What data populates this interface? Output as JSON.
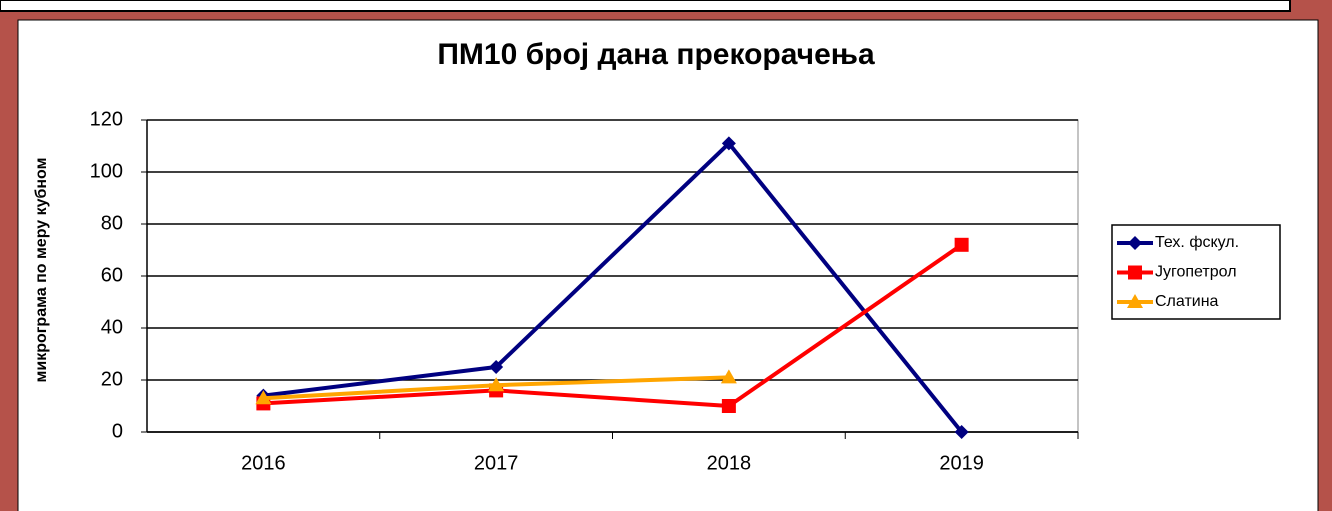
{
  "chart_data": {
    "type": "line",
    "title": "ПМ10 број дана прекорачења",
    "y_label": "микрограма по меру кубном",
    "categories": [
      "2016",
      "2017",
      "2018",
      "2019"
    ],
    "series": [
      {
        "name": "Тех. фскул.",
        "color": "#000080",
        "marker": "diamond",
        "values": [
          14,
          25,
          111,
          0
        ]
      },
      {
        "name": "Југопетрол",
        "color": "#ff0000",
        "marker": "square",
        "values": [
          11,
          16,
          10,
          72
        ]
      },
      {
        "name": "Слатина",
        "color": "#ffa500",
        "marker": "triangle",
        "values": [
          13,
          18,
          21,
          null
        ]
      }
    ],
    "ylim": [
      0,
      120
    ],
    "yticks": [
      0,
      20,
      40,
      60,
      80,
      100,
      120
    ],
    "grid": true,
    "legend": "right"
  }
}
